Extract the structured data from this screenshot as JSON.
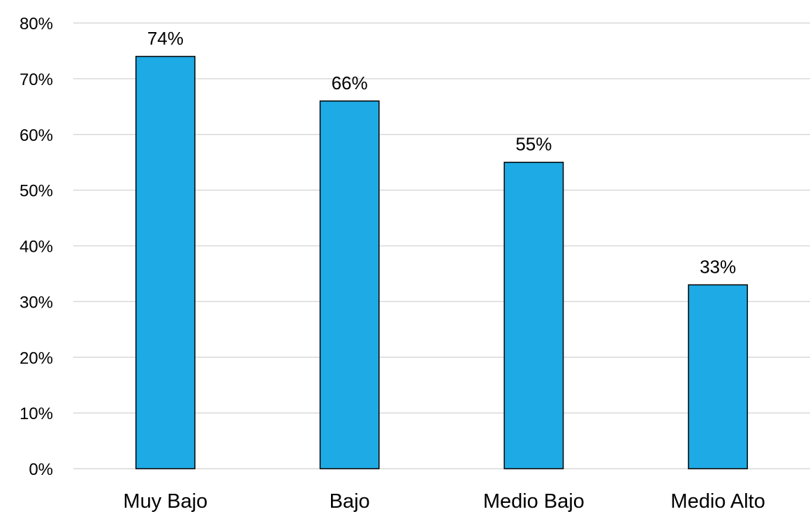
{
  "chart_data": {
    "type": "bar",
    "categories": [
      "Muy Bajo",
      "Bajo",
      "Medio Bajo",
      "Medio Alto"
    ],
    "values": [
      74,
      66,
      55,
      33
    ],
    "data_labels": [
      "74%",
      "66%",
      "55%",
      "33%"
    ],
    "title": "",
    "xlabel": "",
    "ylabel": "",
    "ylim": [
      0,
      80
    ],
    "yticks": [
      0,
      10,
      20,
      30,
      40,
      50,
      60,
      70,
      80
    ],
    "ytick_labels": [
      "0%",
      "10%",
      "20%",
      "30%",
      "40%",
      "50%",
      "60%",
      "70%",
      "80%"
    ],
    "grid": true,
    "legend": "none",
    "bar_color": "#1eaae4",
    "bar_edge_color": "#000000",
    "grid_color": "#d9d9d9"
  }
}
